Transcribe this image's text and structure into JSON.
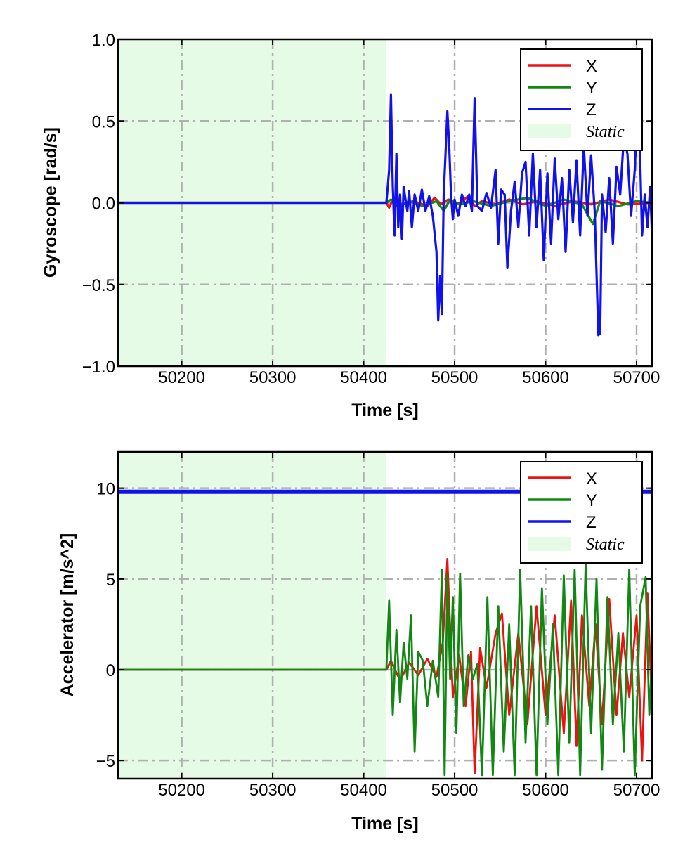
{
  "chart_data": [
    {
      "type": "line",
      "title": "",
      "xlabel": "Time [s]",
      "ylabel": "Gyroscope [rad/s]",
      "xlim": [
        50130,
        50717
      ],
      "ylim": [
        -1.0,
        1.0
      ],
      "xticks": [
        50200,
        50300,
        50400,
        50500,
        50600,
        50700
      ],
      "xtick_labels": [
        "50200",
        "50300",
        "50400",
        "50500",
        "50600",
        "50700"
      ],
      "yticks": [
        -1.0,
        -0.5,
        0.0,
        0.5,
        1.0
      ],
      "ytick_labels": [
        "−1.0",
        "−0.5",
        "0.0",
        "0.5",
        "1.0"
      ],
      "grid": true,
      "legend_position": "top-right",
      "static_region": {
        "label": "Static",
        "x_start": 50130,
        "x_end": 50425,
        "color": "#e6fbe6"
      },
      "series": [
        {
          "name": "X",
          "color": "#ee1111",
          "x": [
            50130,
            50425,
            50428,
            50432,
            50440,
            50455,
            50470,
            50478,
            50485,
            50493,
            50500,
            50508,
            50515,
            50522,
            50530,
            50545,
            50560,
            50575,
            50590,
            50610,
            50630,
            50650,
            50670,
            50690,
            50717
          ],
          "y": [
            0.0,
            0.0,
            -0.03,
            0.02,
            -0.01,
            0.01,
            -0.02,
            0.03,
            -0.01,
            0.02,
            -0.02,
            0.01,
            0.04,
            -0.02,
            0.01,
            -0.01,
            0.02,
            -0.01,
            0.01,
            -0.02,
            0.01,
            -0.01,
            0.02,
            -0.01,
            0.0
          ]
        },
        {
          "name": "Y",
          "color": "#118811",
          "x": [
            50130,
            50425,
            50430,
            50438,
            50450,
            50465,
            50480,
            50488,
            50495,
            50505,
            50520,
            50540,
            50560,
            50580,
            50600,
            50620,
            50640,
            50652,
            50660,
            50680,
            50700,
            50717
          ],
          "y": [
            0.0,
            0.0,
            0.02,
            -0.03,
            0.01,
            -0.02,
            0.01,
            -0.05,
            0.02,
            -0.01,
            0.01,
            -0.02,
            0.01,
            0.03,
            -0.02,
            0.02,
            -0.01,
            -0.13,
            0.01,
            -0.02,
            0.01,
            0.0
          ]
        },
        {
          "name": "Z",
          "color": "#1111ee",
          "x": [
            50130,
            50425,
            50428,
            50430,
            50432,
            50434,
            50436,
            50438,
            50440,
            50442,
            50444,
            50446,
            50448,
            50450,
            50453,
            50456,
            50460,
            50464,
            50468,
            50472,
            50476,
            50480,
            50482,
            50484,
            50486,
            50488,
            50490,
            50492,
            50494,
            50496,
            50498,
            50500,
            50504,
            50508,
            50512,
            50516,
            50519,
            50522,
            50525,
            50530,
            50535,
            50540,
            50545,
            50548,
            50551,
            50555,
            50558,
            50562,
            50566,
            50570,
            50574,
            50578,
            50582,
            50586,
            50590,
            50594,
            50598,
            50602,
            50606,
            50610,
            50614,
            50618,
            50622,
            50626,
            50630,
            50634,
            50638,
            50642,
            50646,
            50650,
            50654,
            50658,
            50660,
            50662,
            50666,
            50670,
            50674,
            50678,
            50682,
            50686,
            50690,
            50694,
            50698,
            50702,
            50706,
            50709,
            50712,
            50715,
            50717
          ],
          "y": [
            0.0,
            0.0,
            0.2,
            0.66,
            0.1,
            -0.2,
            0.3,
            -0.15,
            0.05,
            -0.22,
            0.1,
            0.02,
            -0.05,
            0.07,
            -0.15,
            0.05,
            -0.05,
            0.08,
            -0.05,
            0.04,
            -0.08,
            -0.3,
            -0.72,
            -0.45,
            -0.68,
            0.05,
            0.3,
            0.56,
            0.35,
            0.05,
            -0.1,
            0.02,
            -0.08,
            0.05,
            -0.02,
            0.05,
            -0.05,
            0.64,
            -0.02,
            -0.05,
            0.06,
            -0.03,
            0.2,
            -0.25,
            0.08,
            0.05,
            -0.4,
            -0.05,
            0.13,
            -0.15,
            0.18,
            0.25,
            -0.2,
            0.3,
            -0.15,
            0.2,
            -0.35,
            0.18,
            -0.25,
            0.27,
            -0.1,
            0.15,
            -0.3,
            0.2,
            -0.12,
            0.26,
            -0.2,
            0.35,
            -0.08,
            0.29,
            -0.05,
            -0.81,
            -0.8,
            0.05,
            -0.18,
            0.15,
            -0.25,
            0.22,
            0.05,
            0.4,
            0.3,
            -0.08,
            0.2,
            0.71,
            -0.2,
            0.05,
            -0.15,
            0.1,
            -0.2
          ]
        }
      ]
    },
    {
      "type": "line",
      "title": "",
      "xlabel": "Time [s]",
      "ylabel": "Accelerator [m/s^2]",
      "xlim": [
        50130,
        50717
      ],
      "ylim": [
        -6,
        12
      ],
      "xticks": [
        50200,
        50300,
        50400,
        50500,
        50600,
        50700
      ],
      "xtick_labels": [
        "50200",
        "50300",
        "50400",
        "50500",
        "50600",
        "50700"
      ],
      "yticks": [
        -5,
        0,
        5,
        10
      ],
      "ytick_labels": [
        "−5",
        "0",
        "5",
        "10"
      ],
      "grid": true,
      "legend_position": "top-right",
      "static_region": {
        "label": "Static",
        "x_start": 50130,
        "x_end": 50425,
        "color": "#e6fbe6"
      },
      "series": [
        {
          "name": "X",
          "color": "#ee1111",
          "x": [
            50130,
            50425,
            50430,
            50440,
            50450,
            50460,
            50470,
            50480,
            50487,
            50492,
            50498,
            50505,
            50512,
            50518,
            50522,
            50528,
            50535,
            50545,
            50552,
            50560,
            50570,
            50580,
            50590,
            50600,
            50610,
            50620,
            50628,
            50634,
            50640,
            50648,
            50655,
            50662,
            50670,
            50678,
            50685,
            50692,
            50700,
            50706,
            50712,
            50717
          ],
          "y": [
            0.0,
            0.0,
            0.5,
            -0.6,
            0.4,
            -0.3,
            0.6,
            -0.4,
            1.5,
            6.1,
            -1.5,
            0.8,
            -2.0,
            1.0,
            -5.7,
            1.2,
            -1.0,
            2.0,
            3.1,
            -2.5,
            2.0,
            -3.0,
            3.5,
            -2.5,
            3.0,
            -3.5,
            3.8,
            -4.2,
            3.0,
            -2.0,
            2.5,
            -3.0,
            3.9,
            -2.5,
            2.0,
            -1.5,
            3.0,
            -5.0,
            4.2,
            -2.0
          ]
        },
        {
          "name": "Y",
          "color": "#118811",
          "x": [
            50130,
            50425,
            50428,
            50432,
            50436,
            50440,
            50444,
            50448,
            50452,
            50456,
            50460,
            50465,
            50470,
            50476,
            50482,
            50486,
            50489,
            50492,
            50495,
            50498,
            50502,
            50506,
            50510,
            50515,
            50520,
            50525,
            50530,
            50536,
            50542,
            50548,
            50554,
            50560,
            50566,
            50572,
            50578,
            50584,
            50590,
            50596,
            50602,
            50608,
            50614,
            50620,
            50626,
            50632,
            50638,
            50644,
            50650,
            50656,
            50662,
            50668,
            50674,
            50680,
            50686,
            50692,
            50698,
            50704,
            50710,
            50714,
            50717
          ],
          "y": [
            0.0,
            0.0,
            3.8,
            -2.5,
            2.2,
            -1.8,
            1.5,
            -0.5,
            3.0,
            -4.5,
            1.0,
            0.5,
            -2.0,
            0.5,
            -1.5,
            5.5,
            -5.8,
            5.2,
            -0.5,
            4.0,
            -3.5,
            5.3,
            -2.0,
            0.8,
            -0.5,
            0.3,
            -5.8,
            4.0,
            -5.8,
            3.5,
            -4.5,
            2.5,
            -5.8,
            5.5,
            -4.0,
            3.5,
            -5.8,
            4.5,
            -3.0,
            2.5,
            -5.8,
            5.2,
            -4.0,
            5.5,
            -5.8,
            5.8,
            -3.5,
            5.0,
            -5.5,
            4.0,
            -3.0,
            2.0,
            -4.5,
            5.5,
            -5.8,
            3.5,
            5.1,
            -2.5,
            0.5
          ]
        },
        {
          "name": "Z",
          "color": "#1111ee",
          "x": [
            50130,
            50717
          ],
          "y": [
            9.8,
            9.8
          ]
        }
      ]
    }
  ],
  "legend": {
    "entries": [
      "X",
      "Y",
      "Z"
    ],
    "static_label": "Static"
  }
}
